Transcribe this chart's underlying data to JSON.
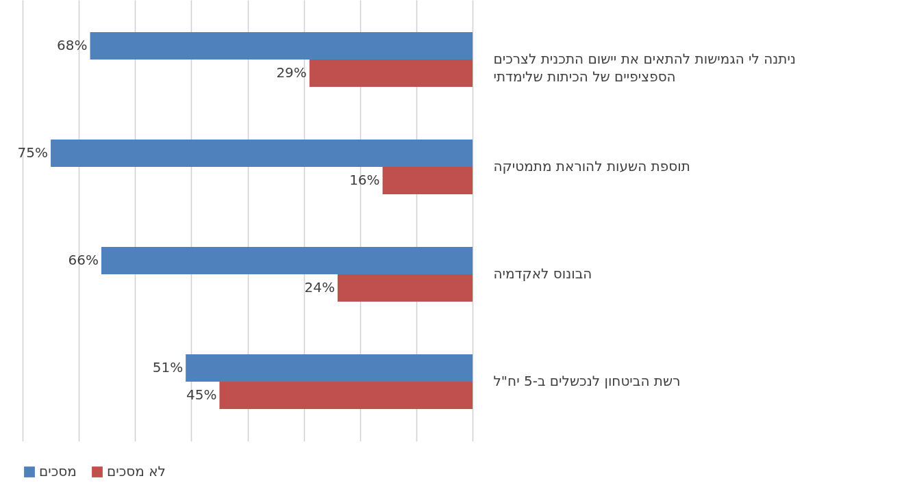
{
  "chart_data": {
    "type": "bar",
    "orientation": "horizontal",
    "categories": [
      "ניתנה לי הגמישות להתאים את יישום התכנית לצרכים הספציפיים של הכיתות שלימדתי",
      "תוספת השעות להוראת מתמטיקה",
      "הבונוס לאקדמיה",
      "רשת הביטחון לנכשלים ב-5 יח\"ל"
    ],
    "series": [
      {
        "name": "מסכים",
        "color": "#4f81bd",
        "values": [
          68,
          75,
          66,
          51
        ],
        "value_labels": [
          "68%",
          "75%",
          "66%",
          "51%"
        ]
      },
      {
        "name": "לא מסכים",
        "color": "#c0504d",
        "values": [
          29,
          16,
          24,
          45
        ],
        "value_labels": [
          "29%",
          "16%",
          "24%",
          "45%"
        ]
      }
    ],
    "xlim": [
      80,
      0
    ],
    "xticks": [
      0,
      10,
      20,
      30,
      40,
      50,
      60,
      70,
      80
    ],
    "grid": "x",
    "tick_labels": "y",
    "legend": "bottom"
  }
}
